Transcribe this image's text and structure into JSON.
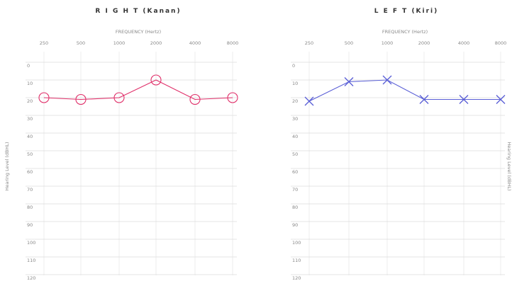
{
  "chart_data": [
    {
      "type": "line",
      "title": "R I G H T  (Kanan)",
      "xlabel": "FREQUENCY (Hertz)",
      "ylabel": "Hearing Level (dBHL)",
      "x": [
        "250",
        "500",
        "1000",
        "2000",
        "4000",
        "8000"
      ],
      "y_ticks": [
        "0",
        "10",
        "20",
        "30",
        "40",
        "50",
        "60",
        "70",
        "80",
        "90",
        "100",
        "110",
        "120"
      ],
      "ylim": [
        0,
        120
      ],
      "y_inverted": true,
      "series": [
        {
          "marker": "circle",
          "color": "#e0306a",
          "values": [
            20,
            21,
            20,
            10,
            21,
            20
          ]
        }
      ],
      "grid": true
    },
    {
      "type": "line",
      "title": "L E F T  (Kiri)",
      "xlabel": "FREQUENCY (Hertz)",
      "ylabel": "Hearing Level (dBHL)",
      "x": [
        "250",
        "500",
        "1000",
        "2000",
        "4000",
        "8000"
      ],
      "y_ticks": [
        "0",
        "10",
        "20",
        "30",
        "40",
        "50",
        "60",
        "70",
        "80",
        "90",
        "100",
        "110",
        "120"
      ],
      "ylim": [
        0,
        120
      ],
      "y_inverted": true,
      "series": [
        {
          "marker": "x",
          "color": "#5a5fd6",
          "values": [
            22,
            11,
            10,
            21,
            21,
            21
          ]
        }
      ],
      "grid": true
    }
  ]
}
